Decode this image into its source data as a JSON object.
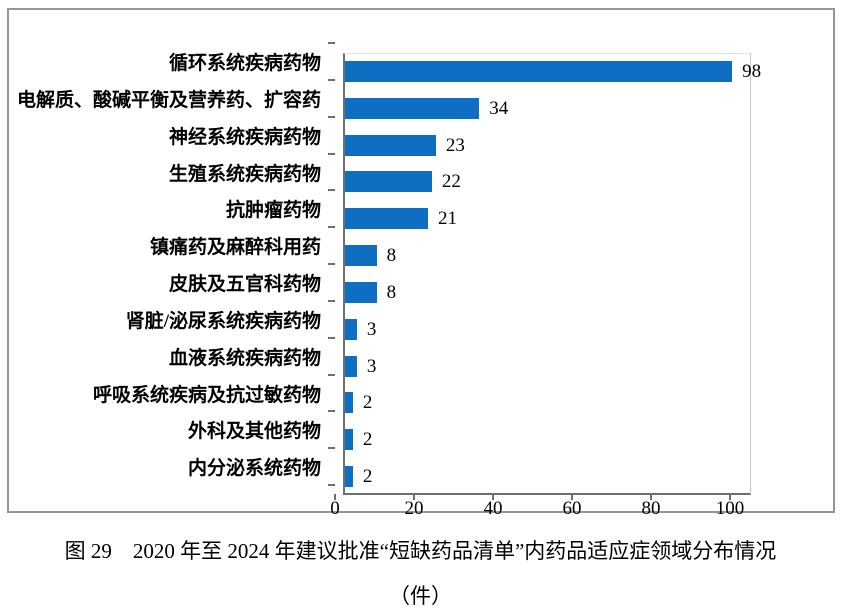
{
  "figure": {
    "caption_line1": "图 29　2020 年至 2024 年建议批准“短缺药品清单”内药品适应症领域分布情况",
    "caption_line2": "（件）"
  },
  "chart_data": {
    "type": "bar",
    "orientation": "horizontal",
    "title": "图 29　2020 年至 2024 年建议批准“短缺药品清单”内药品适应症领域分布情况（件）",
    "categories": [
      "循环系统疾病药物",
      "电解质、酸碱平衡及营养药、扩容药",
      "神经系统疾病药物",
      "生殖系统疾病药物",
      "抗肿瘤药物",
      "镇痛药及麻醉科用药",
      "皮肤及五官科药物",
      "肾脏/泌尿系统疾病药物",
      "血液系统疾病药物",
      "呼吸系统疾病及抗过敏药物",
      "外科及其他药物",
      "内分泌系统药物"
    ],
    "values": [
      98,
      34,
      23,
      22,
      21,
      8,
      8,
      3,
      3,
      2,
      2,
      2
    ],
    "x_ticks": [
      0,
      20,
      40,
      60,
      80,
      100
    ],
    "xlim": [
      0,
      103
    ],
    "bar_color": "#0d6ec2",
    "axis_color": "#6f6f6f",
    "grid": false,
    "value_labels": true,
    "legend": "none"
  }
}
